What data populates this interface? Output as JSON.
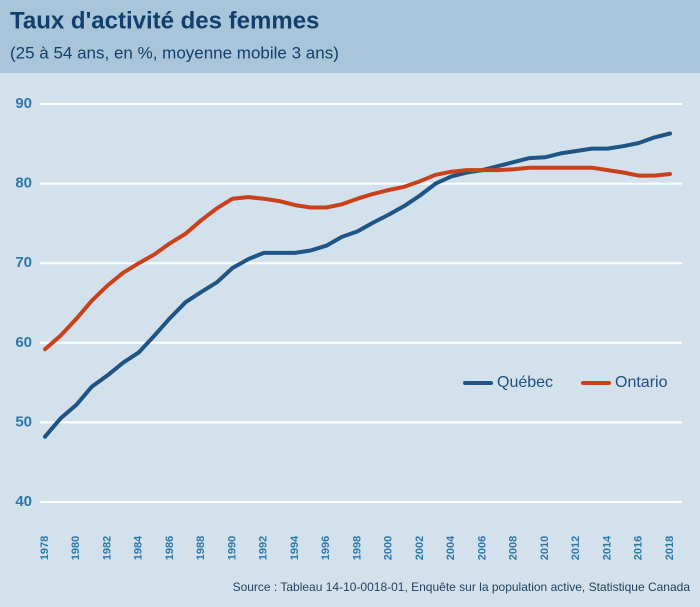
{
  "chart_data": {
    "type": "line",
    "title": "Taux d'activité des femmes",
    "subtitle": "(25 à 54 ans, en %, moyenne mobile 3 ans)",
    "source": "Source : Tableau 14-10-0018-01, Enquête sur la population active, Statistique Canada",
    "x": [
      1978,
      1979,
      1980,
      1981,
      1982,
      1983,
      1984,
      1985,
      1986,
      1987,
      1988,
      1989,
      1990,
      1991,
      1992,
      1993,
      1994,
      1995,
      1996,
      1997,
      1998,
      1999,
      2000,
      2001,
      2002,
      2003,
      2004,
      2005,
      2006,
      2007,
      2008,
      2009,
      2010,
      2011,
      2012,
      2013,
      2014,
      2015,
      2016,
      2017,
      2018
    ],
    "xlim": [
      1978,
      2018
    ],
    "xticks": [
      1978,
      1980,
      1982,
      1984,
      1986,
      1988,
      1990,
      1992,
      1994,
      1996,
      1998,
      2000,
      2002,
      2004,
      2006,
      2008,
      2010,
      2012,
      2014,
      2016,
      2018
    ],
    "ylim": [
      40,
      90
    ],
    "yticks": [
      40,
      50,
      60,
      70,
      80,
      90
    ],
    "grid": true,
    "series": [
      {
        "name": "Québec",
        "color": "#1f5484",
        "values": [
          48.2,
          50.5,
          52.2,
          54.5,
          55.9,
          57.5,
          58.8,
          60.9,
          63.1,
          65.1,
          66.4,
          67.6,
          69.4,
          70.5,
          71.3,
          71.3,
          71.3,
          71.6,
          72.2,
          73.3,
          74.0,
          75.1,
          76.1,
          77.2,
          78.5,
          80.0,
          80.9,
          81.4,
          81.7,
          82.2,
          82.7,
          83.2,
          83.3,
          83.8,
          84.1,
          84.4,
          84.4,
          84.7,
          85.1,
          85.8,
          86.3
        ]
      },
      {
        "name": "Ontario",
        "color": "#c8411b",
        "values": [
          59.2,
          60.9,
          63.0,
          65.3,
          67.2,
          68.8,
          70.0,
          71.1,
          72.5,
          73.7,
          75.4,
          76.9,
          78.1,
          78.3,
          78.1,
          77.8,
          77.3,
          77.0,
          77.0,
          77.4,
          78.1,
          78.7,
          79.2,
          79.6,
          80.3,
          81.1,
          81.5,
          81.7,
          81.7,
          81.7,
          81.8,
          82.0,
          82.0,
          82.0,
          82.0,
          82.0,
          81.7,
          81.4,
          81.0,
          81.0,
          81.2
        ]
      }
    ]
  }
}
